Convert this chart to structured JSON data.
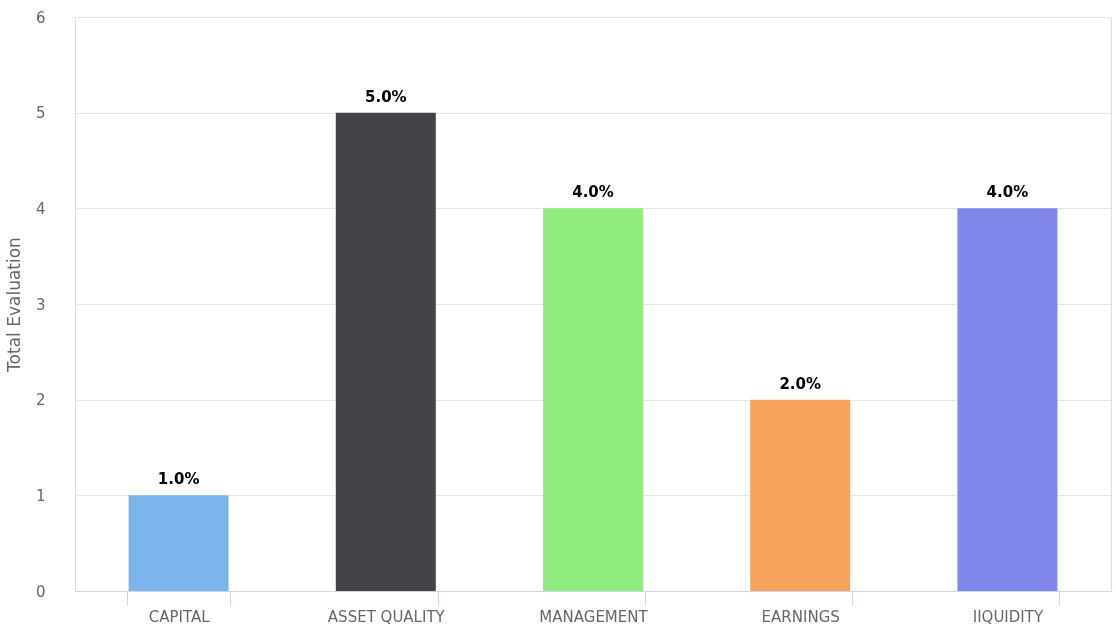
{
  "chart_data": {
    "type": "bar",
    "ylabel": "Total Evaluation",
    "categories": [
      "CAPITAL",
      "ASSET QUALITY",
      "MANAGEMENT",
      "EARNINGS",
      "IIQUIDITY"
    ],
    "values": [
      1,
      5,
      4,
      2,
      4
    ],
    "colors": [
      "#7cb5ec",
      "#434348",
      "#90ed7d",
      "#f7a35c",
      "#8085e9"
    ],
    "value_labels": [
      "1.0%",
      "5.0%",
      "4.0%",
      "2.0%",
      "4.0%"
    ],
    "ylim": [
      0,
      6
    ],
    "yticks": [
      0,
      1,
      2,
      3,
      4,
      5,
      6
    ],
    "grid": "y"
  }
}
